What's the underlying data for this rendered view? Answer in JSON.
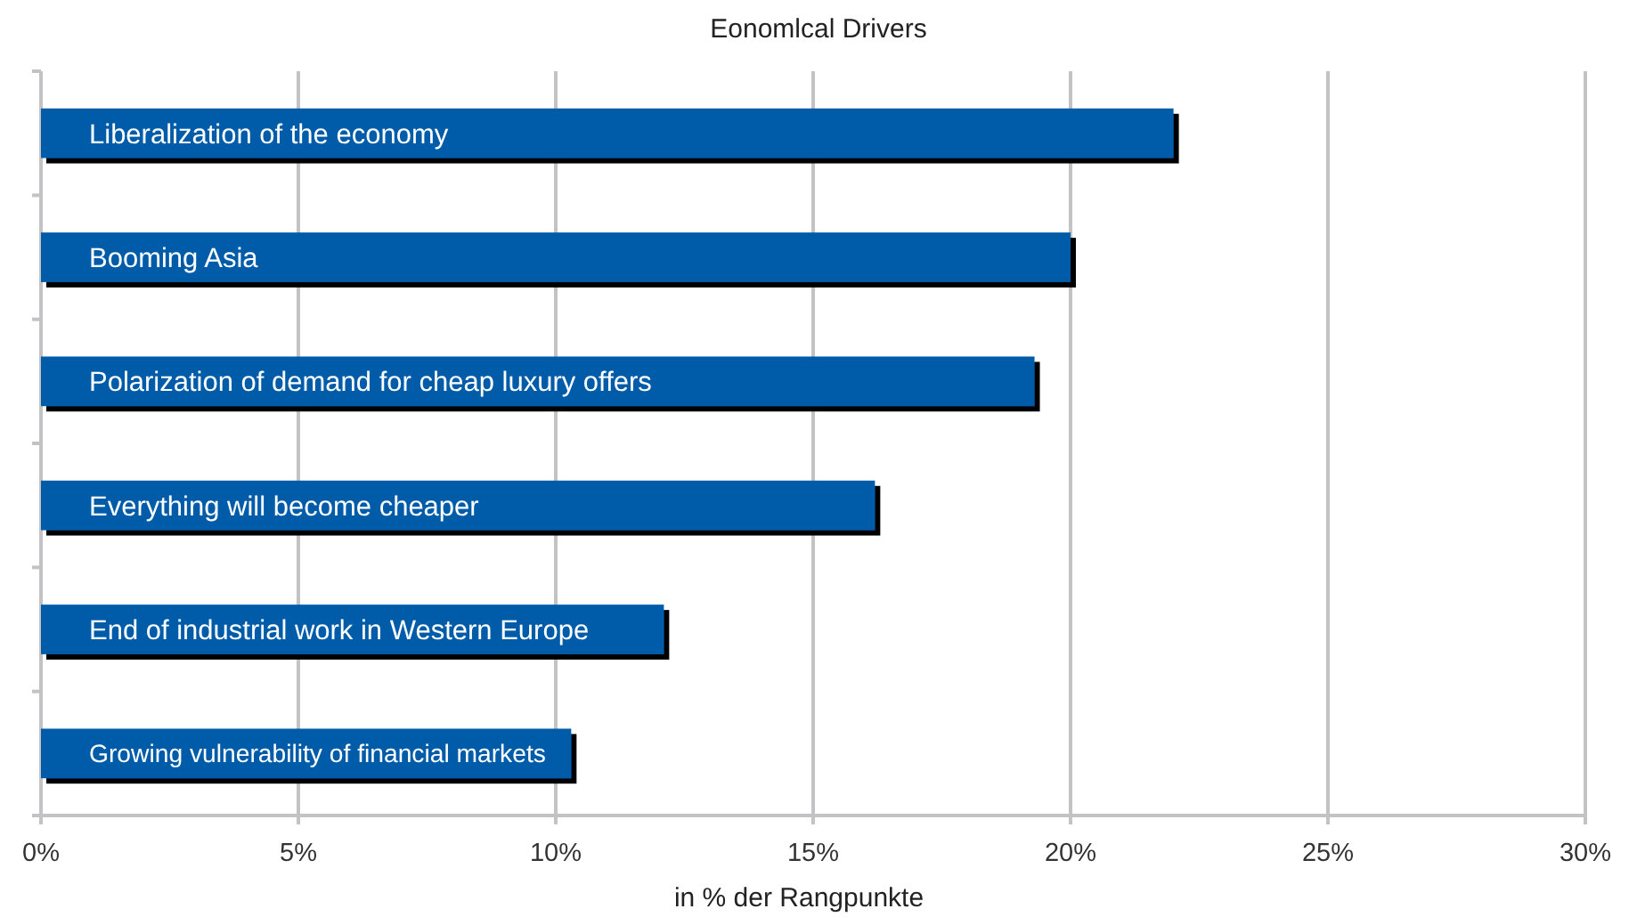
{
  "chart_data": {
    "type": "bar",
    "orientation": "horizontal",
    "title": "Eonomlcal Drivers",
    "xlabel": "in % der Rangpunkte",
    "categories": [
      "Liberalization of the economy",
      "Booming Asia",
      "Polarization of demand for cheap luxury offers",
      "Everything will become cheaper",
      "End of industrial work in Western Europe",
      "Growing vulnerability of financial markets"
    ],
    "values": [
      22.0,
      20.0,
      19.3,
      16.2,
      12.1,
      10.3
    ],
    "color": "#005ca9",
    "xlim": [
      0,
      30
    ],
    "xticks": [
      {
        "value": 0,
        "label": "0%"
      },
      {
        "value": 5,
        "label": "5%"
      },
      {
        "value": 10,
        "label": "10%"
      },
      {
        "value": 15,
        "label": "15%"
      },
      {
        "value": 20,
        "label": "20%"
      },
      {
        "value": 25,
        "label": "25%"
      },
      {
        "value": 30,
        "label": "30%"
      }
    ],
    "grid": "x"
  }
}
